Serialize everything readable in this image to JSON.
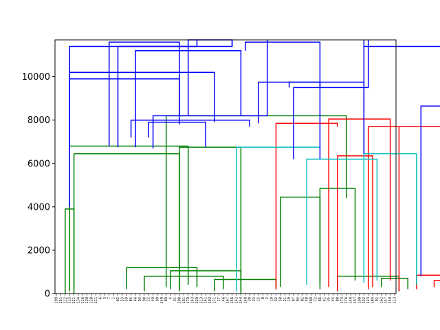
{
  "chart_data": {
    "type": "dendrogram",
    "title": "",
    "xlabel": "",
    "ylabel": "",
    "ylim": [
      0,
      11700
    ],
    "yticks": [
      0,
      2000,
      4000,
      6000,
      8000,
      10000
    ],
    "grid": false,
    "legend": "none",
    "colors": {
      "green": "#008000",
      "red": "#ff0000",
      "cyan": "#00bfbf",
      "blue": "#0000ff"
    },
    "leaves": [
      "199",
      "151",
      "112",
      "115",
      "121",
      "134",
      "116",
      "130",
      "128",
      "111",
      "6",
      "3",
      "7",
      "1",
      "62",
      "53",
      "50",
      "84",
      "46",
      "93",
      "90",
      "22",
      "40",
      "99",
      "149",
      "80",
      "4",
      "31",
      "108",
      "161",
      "170",
      "143",
      "120",
      "113",
      "141",
      "103",
      "171",
      "17",
      "46",
      "167",
      "156",
      "142",
      "144",
      "140",
      "39",
      "33",
      "15",
      "8",
      "2",
      "10",
      "32",
      "50",
      "21",
      "19",
      "97",
      "94",
      "82",
      "48",
      "100",
      "72",
      "66",
      "41",
      "35",
      "44",
      "88",
      "174",
      "176",
      "140",
      "157",
      "109",
      "132",
      "123",
      "184",
      "92",
      "162",
      "147",
      "150",
      "113"
    ],
    "links": [
      {
        "color": "green",
        "x": [
          2,
          2,
          4,
          4
        ],
        "y": [
          0,
          3900,
          3900,
          0
        ]
      },
      {
        "color": "green",
        "x": [
          3,
          3,
          30,
          30
        ],
        "y": [
          100,
          6800,
          6800,
          400
        ]
      },
      {
        "color": "green",
        "x": [
          4,
          4,
          28,
          28
        ],
        "y": [
          300,
          6450,
          6450,
          200
        ]
      },
      {
        "color": "green",
        "x": [
          28,
          28,
          42,
          42
        ],
        "y": [
          100,
          6750,
          6750,
          0
        ]
      },
      {
        "color": "green",
        "x": [
          16,
          16,
          32,
          32
        ],
        "y": [
          200,
          1200,
          1200,
          300
        ]
      },
      {
        "color": "green",
        "x": [
          20,
          20,
          38,
          38
        ],
        "y": [
          100,
          800,
          800,
          200
        ]
      },
      {
        "color": "green",
        "x": [
          26,
          26,
          42,
          42
        ],
        "y": [
          200,
          1050,
          1050,
          100
        ]
      },
      {
        "color": "green",
        "x": [
          36,
          36,
          50,
          50
        ],
        "y": [
          100,
          650,
          650,
          200
        ]
      },
      {
        "color": "green",
        "x": [
          25,
          25,
          66,
          66
        ],
        "y": [
          300,
          8200,
          8200,
          4400
        ]
      },
      {
        "color": "green",
        "x": [
          51,
          51,
          60,
          60
        ],
        "y": [
          300,
          4450,
          4450,
          500
        ]
      },
      {
        "color": "green",
        "x": [
          60,
          60,
          68,
          68
        ],
        "y": [
          200,
          4850,
          4850,
          600
        ]
      },
      {
        "color": "green",
        "x": [
          64,
          64,
          78,
          78
        ],
        "y": [
          100,
          800,
          800,
          100
        ]
      },
      {
        "color": "green",
        "x": [
          74,
          74,
          80,
          80
        ],
        "y": [
          300,
          700,
          700,
          200
        ]
      },
      {
        "color": "red",
        "x": [
          50,
          50,
          64,
          64
        ],
        "y": [
          200,
          7850,
          7850,
          7700
        ]
      },
      {
        "color": "red",
        "x": [
          62,
          62,
          76,
          76
        ],
        "y": [
          300,
          8050,
          8050,
          600
        ]
      },
      {
        "color": "red",
        "x": [
          64,
          64,
          72,
          72
        ],
        "y": [
          100,
          6350,
          6350,
          300
        ]
      },
      {
        "color": "red",
        "x": [
          71,
          71,
          92,
          92
        ],
        "y": [
          200,
          7700,
          7700,
          800
        ]
      },
      {
        "color": "red",
        "x": [
          78,
          78,
          88,
          88
        ],
        "y": [
          100,
          7700,
          7700,
          500
        ]
      },
      {
        "color": "red",
        "x": [
          82,
          82,
          94,
          94
        ],
        "y": [
          200,
          850,
          850,
          300
        ]
      },
      {
        "color": "red",
        "x": [
          86,
          86,
          94,
          94
        ],
        "y": [
          300,
          600,
          600,
          400
        ]
      },
      {
        "color": "cyan",
        "x": [
          41,
          41,
          60,
          60
        ],
        "y": [
          100,
          6750,
          6750,
          6700
        ]
      },
      {
        "color": "cyan",
        "x": [
          57,
          57,
          73,
          73
        ],
        "y": [
          400,
          6200,
          6200,
          600
        ]
      },
      {
        "color": "cyan",
        "x": [
          70,
          70,
          82,
          82
        ],
        "y": [
          500,
          6450,
          6450,
          400
        ]
      },
      {
        "color": "cyan",
        "x": [
          90,
          90,
          96,
          96
        ],
        "y": [
          400,
          1300,
          1300,
          400
        ]
      },
      {
        "color": "blue",
        "x": [
          3,
          3,
          32,
          32
        ],
        "y": [
          4000,
          11400,
          11400,
          11700
        ]
      },
      {
        "color": "blue",
        "x": [
          3,
          3,
          36,
          36
        ],
        "y": [
          6800,
          10200,
          10200,
          7900
        ]
      },
      {
        "color": "blue",
        "x": [
          3,
          3,
          28,
          28
        ],
        "y": [
          6450,
          9900,
          9900,
          7800
        ]
      },
      {
        "color": "blue",
        "x": [
          12,
          12,
          28,
          28
        ],
        "y": [
          6800,
          11600,
          11600,
          8200
        ]
      },
      {
        "color": "blue",
        "x": [
          14,
          14,
          40,
          40
        ],
        "y": [
          6750,
          11400,
          11400,
          11700
        ]
      },
      {
        "color": "blue",
        "x": [
          17,
          17,
          44,
          44
        ],
        "y": [
          7200,
          8000,
          8000,
          7700
        ]
      },
      {
        "color": "blue",
        "x": [
          21,
          21,
          34,
          34
        ],
        "y": [
          7200,
          7900,
          7900,
          6750
        ]
      },
      {
        "color": "blue",
        "x": [
          22,
          22,
          48,
          48
        ],
        "y": [
          6700,
          8200,
          8200,
          11700
        ]
      },
      {
        "color": "blue",
        "x": [
          18,
          18,
          42,
          42
        ],
        "y": [
          6750,
          11200,
          11200,
          8200
        ]
      },
      {
        "color": "blue",
        "x": [
          30,
          30,
          40,
          40
        ],
        "y": [
          8200,
          11700,
          11700,
          11400
        ]
      },
      {
        "color": "blue",
        "x": [
          43,
          43,
          60,
          60
        ],
        "y": [
          11200,
          11600,
          11600,
          9500
        ]
      },
      {
        "color": "blue",
        "x": [
          46,
          46,
          60,
          60
        ],
        "y": [
          7850,
          9750,
          9750,
          6200
        ]
      },
      {
        "color": "blue",
        "x": [
          53,
          53,
          70,
          70
        ],
        "y": [
          9500,
          9750,
          9750,
          6450
        ]
      },
      {
        "color": "blue",
        "x": [
          54,
          54,
          71,
          71
        ],
        "y": [
          6200,
          9500,
          9500,
          11700
        ]
      },
      {
        "color": "blue",
        "x": [
          70,
          70,
          70,
          70
        ],
        "y": [
          6450,
          11400,
          11400,
          11700
        ]
      },
      {
        "color": "blue",
        "x": [
          83,
          83,
          96,
          96
        ],
        "y": [
          800,
          8650,
          8650,
          500
        ]
      },
      {
        "color": "blue",
        "x": [
          88,
          88,
          96,
          96
        ],
        "y": [
          8650,
          11700,
          11700,
          11400
        ]
      },
      {
        "color": "blue",
        "x": [
          89,
          89,
          96,
          96
        ],
        "y": [
          1300,
          10600,
          10600,
          10600
        ]
      },
      {
        "color": "blue",
        "x": [
          70,
          70,
          96,
          96
        ],
        "y": [
          11400,
          11400,
          11400,
          11400
        ]
      }
    ]
  }
}
